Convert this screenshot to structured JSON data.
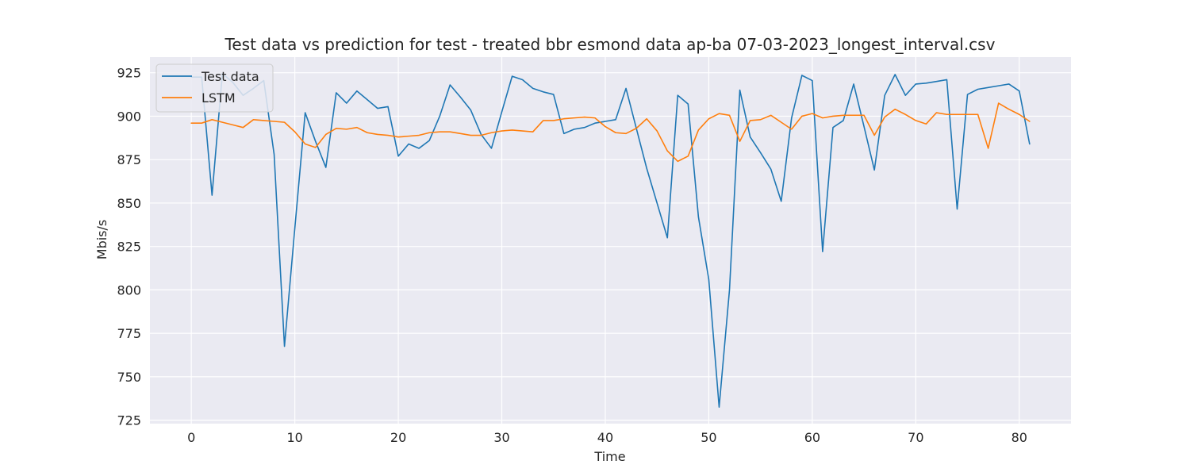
{
  "chart_data": {
    "type": "line",
    "title": "Test data vs prediction for test - treated bbr esmond data ap-ba 07-03-2023_longest_interval.csv",
    "xlabel": "Time",
    "ylabel": "Mbis/s",
    "xlim": [
      -4,
      85
    ],
    "ylim": [
      723,
      934
    ],
    "xticks": [
      0,
      10,
      20,
      30,
      40,
      50,
      60,
      70,
      80
    ],
    "yticks": [
      725,
      750,
      775,
      800,
      825,
      850,
      875,
      900,
      925
    ],
    "grid": true,
    "legend_position": "upper-left",
    "series": [
      {
        "name": "Test data",
        "color": "#1f77b4",
        "x": [
          0,
          1,
          2,
          3,
          4,
          5,
          6,
          7,
          8,
          9,
          10,
          11,
          12,
          13,
          14,
          15,
          16,
          17,
          18,
          19,
          20,
          21,
          22,
          23,
          24,
          25,
          26,
          27,
          28,
          29,
          30,
          31,
          32,
          33,
          34,
          35,
          36,
          37,
          38,
          39,
          40,
          41,
          42,
          43,
          44,
          45,
          46,
          47,
          48,
          49,
          50,
          51,
          52,
          53,
          54,
          55,
          56,
          57,
          58,
          59,
          60,
          61,
          62,
          63,
          64,
          65,
          66,
          67,
          68,
          69,
          70,
          71,
          72,
          73,
          74,
          75,
          76,
          77,
          78,
          79,
          80,
          81
        ],
        "values": [
          922.5,
          922.5,
          854.5,
          924.5,
          919.5,
          912,
          916,
          920.5,
          878,
          767.5,
          835.5,
          902,
          885.5,
          870.5,
          913.5,
          907.5,
          914.5,
          909.5,
          904.5,
          905.5,
          877,
          884,
          881.5,
          886,
          900,
          918,
          911,
          903.5,
          889.5,
          881.5,
          902.5,
          923,
          921,
          916,
          914,
          912.5,
          890,
          892.5,
          893.5,
          896,
          897,
          898,
          916,
          893,
          870,
          850,
          830,
          912,
          907,
          842,
          806,
          732.5,
          800,
          915,
          888,
          879,
          869.5,
          851,
          899,
          923.5,
          920.5,
          822,
          893.5,
          897.5,
          918.5,
          894,
          869,
          912,
          924,
          912,
          918.5,
          919,
          920,
          921,
          846.5,
          912.5,
          915.5,
          916.5,
          917.5,
          918.5,
          914.5,
          884
        ]
      },
      {
        "name": "LSTM",
        "color": "#ff7f0e",
        "x": [
          0,
          1,
          2,
          3,
          4,
          5,
          6,
          7,
          8,
          9,
          10,
          11,
          12,
          13,
          14,
          15,
          16,
          17,
          18,
          19,
          20,
          21,
          22,
          23,
          24,
          25,
          26,
          27,
          28,
          29,
          30,
          31,
          32,
          33,
          34,
          35,
          36,
          37,
          38,
          39,
          40,
          41,
          42,
          43,
          44,
          45,
          46,
          47,
          48,
          49,
          50,
          51,
          52,
          53,
          54,
          55,
          56,
          57,
          58,
          59,
          60,
          61,
          62,
          63,
          64,
          65,
          66,
          67,
          68,
          69,
          70,
          71,
          72,
          73,
          74,
          75,
          76,
          77,
          78,
          79,
          80,
          81
        ],
        "values": [
          896,
          896,
          898,
          896.5,
          895,
          893.5,
          898,
          897.5,
          897,
          896.5,
          891,
          884,
          882,
          889.5,
          893,
          892.5,
          893.5,
          890.5,
          889.5,
          889,
          888,
          888.5,
          889,
          890.5,
          891,
          891,
          890,
          889,
          889,
          890.5,
          891.5,
          892,
          891.5,
          891,
          897.5,
          897.5,
          898.5,
          899,
          899.5,
          899,
          894,
          890.5,
          890,
          893,
          898.5,
          891.5,
          880,
          874,
          877,
          892,
          898.5,
          901.5,
          900.5,
          885.5,
          897.5,
          898,
          900.5,
          896.5,
          892.5,
          900,
          901.5,
          899,
          900,
          900.5,
          900.5,
          900.5,
          889,
          899.5,
          904,
          901,
          897.5,
          895.5,
          902,
          901,
          901,
          901,
          901,
          881.5,
          907.5,
          904,
          901,
          897
        ]
      }
    ]
  }
}
